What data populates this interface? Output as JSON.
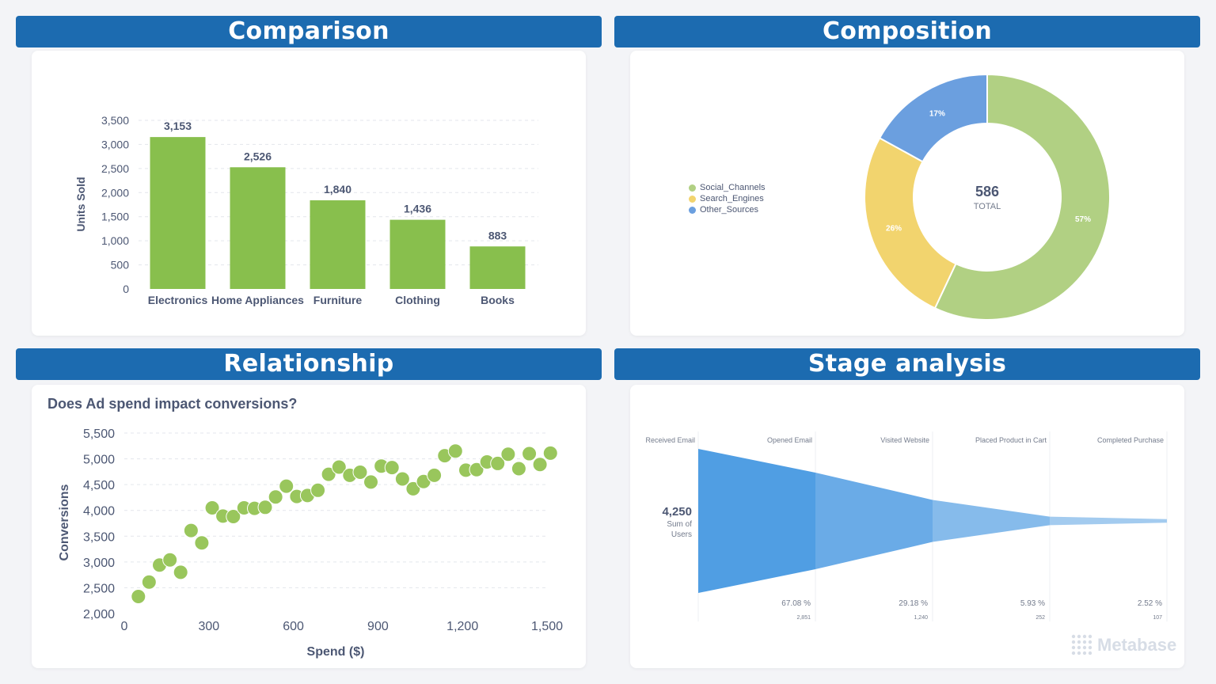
{
  "banners": {
    "comparison": "Comparison",
    "composition": "Composition",
    "relationship": "Relationship",
    "stage": "Stage analysis"
  },
  "colors": {
    "banner": "#1c6bb0",
    "bar": "#88bf4d",
    "social": "#b1d083",
    "search": "#f2d46e",
    "other": "#6b9fdf",
    "funnel": "#509ee3"
  },
  "chart_data": [
    {
      "type": "bar",
      "categories": [
        "Electronics",
        "Home Appliances",
        "Furniture",
        "Clothing",
        "Books"
      ],
      "values": [
        3153,
        2526,
        1840,
        1436,
        883
      ],
      "value_labels": [
        "3,153",
        "2,526",
        "1,840",
        "1,436",
        "883"
      ],
      "ylabel": "Units Sold",
      "ylim": [
        0,
        3500
      ],
      "yticks": [
        "0",
        "500",
        "1,000",
        "1,500",
        "2,000",
        "2,500",
        "3,000",
        "3,500"
      ],
      "grid": true
    },
    {
      "type": "pie",
      "donut": true,
      "labels": [
        "Social_Channels",
        "Search_Engines",
        "Other_Sources"
      ],
      "values": [
        57,
        26,
        17
      ],
      "pct_labels": [
        "57%",
        "26%",
        "17%"
      ],
      "center_value": "586",
      "center_label": "TOTAL",
      "legend": "left"
    },
    {
      "type": "scatter",
      "title": "Does Ad spend impact conversions?",
      "xlabel": "Spend ($)",
      "ylabel": "Conversions",
      "xlim": [
        0,
        1500
      ],
      "ylim": [
        2000,
        5500
      ],
      "xticks": [
        "0",
        "300",
        "600",
        "900",
        "1,200",
        "1,500"
      ],
      "yticks": [
        "2,000",
        "2,500",
        "3,000",
        "3,500",
        "4,000",
        "4,500",
        "5,000",
        "5,500"
      ],
      "points": [
        [
          50,
          2330
        ],
        [
          88,
          2610
        ],
        [
          125,
          2940
        ],
        [
          162,
          3040
        ],
        [
          200,
          2800
        ],
        [
          237,
          3610
        ],
        [
          275,
          3370
        ],
        [
          312,
          4050
        ],
        [
          350,
          3890
        ],
        [
          387,
          3880
        ],
        [
          425,
          4050
        ],
        [
          462,
          4040
        ],
        [
          500,
          4060
        ],
        [
          537,
          4260
        ],
        [
          575,
          4470
        ],
        [
          612,
          4270
        ],
        [
          650,
          4290
        ],
        [
          687,
          4390
        ],
        [
          725,
          4700
        ],
        [
          762,
          4840
        ],
        [
          800,
          4680
        ],
        [
          837,
          4740
        ],
        [
          875,
          4550
        ],
        [
          912,
          4860
        ],
        [
          950,
          4830
        ],
        [
          987,
          4610
        ],
        [
          1025,
          4420
        ],
        [
          1062,
          4560
        ],
        [
          1100,
          4680
        ],
        [
          1137,
          5060
        ],
        [
          1175,
          5150
        ],
        [
          1212,
          4780
        ],
        [
          1250,
          4790
        ],
        [
          1287,
          4940
        ],
        [
          1325,
          4910
        ],
        [
          1362,
          5090
        ],
        [
          1400,
          4810
        ],
        [
          1437,
          5100
        ],
        [
          1475,
          4890
        ],
        [
          1512,
          5110
        ]
      ],
      "grid": true
    },
    {
      "type": "funnel",
      "stages": [
        "Received Email",
        "Opened Email",
        "Visited Website",
        "Placed Product in Cart",
        "Completed Purchase"
      ],
      "values": [
        4250,
        2851,
        1240,
        252,
        107
      ],
      "pct_labels": [
        "67.08 %",
        "29.18 %",
        "5.93 %",
        "2.52 %"
      ],
      "count_labels": [
        "2,851",
        "1,240",
        "252",
        "107"
      ],
      "first_value": "4,250",
      "first_caption": "Sum of\nUsers"
    }
  ],
  "logo": "Metabase"
}
